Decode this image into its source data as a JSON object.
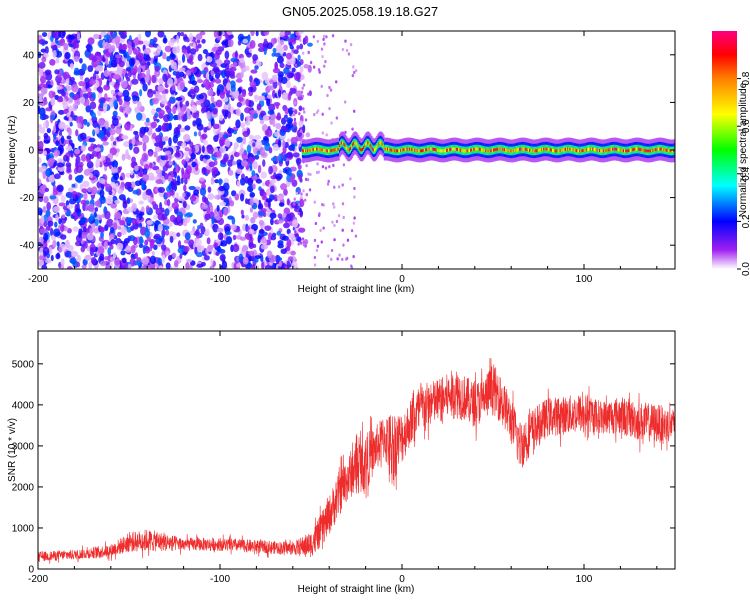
{
  "title": "GN05.2025.058.19.18.G27",
  "chart_data": [
    {
      "type": "heatmap",
      "title": "GN05.2025.058.19.18.G27",
      "xlabel": "Height of straight line (km)",
      "ylabel": "Frequency (Hz)",
      "xlim": [
        -200,
        150
      ],
      "ylim": [
        -50,
        50
      ],
      "x_ticks": [
        "-200",
        "-100",
        "0",
        "100"
      ],
      "y_ticks": [
        "40",
        "20",
        "0",
        "-20",
        "-40"
      ],
      "colorbar": {
        "label": "Normalized spectral amplitude",
        "range": [
          0,
          1
        ],
        "ticks": [
          "0.0",
          "0.2",
          "0.4",
          "0.6",
          "0.8"
        ],
        "colormap": [
          "#ffffff",
          "#a020f0",
          "#0000ff",
          "#00ffff",
          "#00ff00",
          "#ffff00",
          "#ff8000",
          "#ff0000",
          "#ff0080"
        ]
      },
      "regions": [
        {
          "x_range": [
            -200,
            -55
          ],
          "y_range": [
            -50,
            50
          ],
          "amplitude_range": [
            0.0,
            0.25
          ],
          "description": "broadband noise"
        },
        {
          "x_range": [
            -55,
            150
          ],
          "frequency_center": 0,
          "frequency_halfwidth": 3,
          "amplitude_range": [
            0.6,
            1.0
          ]
        }
      ]
    },
    {
      "type": "line",
      "xlabel": "Height of straight line (km)",
      "ylabel": "SNR (10 * v/v)",
      "xlim": [
        -200,
        150
      ],
      "ylim": [
        0,
        5800
      ],
      "x_ticks": [
        "-200",
        "-100",
        "0",
        "100"
      ],
      "y_ticks": [
        "0",
        "1000",
        "2000",
        "3000",
        "4000",
        "5000"
      ],
      "series": [
        {
          "color": "#ee2c2c",
          "x": [
            -200,
            -180,
            -160,
            -150,
            -140,
            -120,
            -100,
            -80,
            -60,
            -50,
            -45,
            -40,
            -35,
            -30,
            -25,
            -20,
            -15,
            -10,
            -5,
            0,
            5,
            10,
            15,
            20,
            25,
            30,
            35,
            40,
            45,
            50,
            55,
            60,
            65,
            70,
            80,
            90,
            100,
            110,
            120,
            130,
            140,
            150
          ],
          "values": [
            300,
            350,
            450,
            650,
            700,
            600,
            600,
            550,
            500,
            600,
            900,
            1300,
            1800,
            2200,
            2500,
            2600,
            2900,
            3200,
            3000,
            3200,
            3600,
            3900,
            4000,
            4100,
            4200,
            4300,
            4150,
            4000,
            4150,
            4400,
            4100,
            3600,
            3000,
            3300,
            3700,
            3750,
            3800,
            3700,
            3750,
            3600,
            3550,
            3500
          ],
          "envelope_amplitude": [
            150,
            150,
            200,
            300,
            350,
            200,
            200,
            200,
            200,
            400,
            500,
            600,
            700,
            700,
            800,
            900,
            700,
            700,
            1100,
            800,
            700,
            800,
            700,
            700,
            700,
            800,
            700,
            700,
            700,
            800,
            700,
            700,
            800,
            700,
            600,
            600,
            600,
            500,
            600,
            600,
            600,
            500
          ]
        }
      ]
    }
  ]
}
